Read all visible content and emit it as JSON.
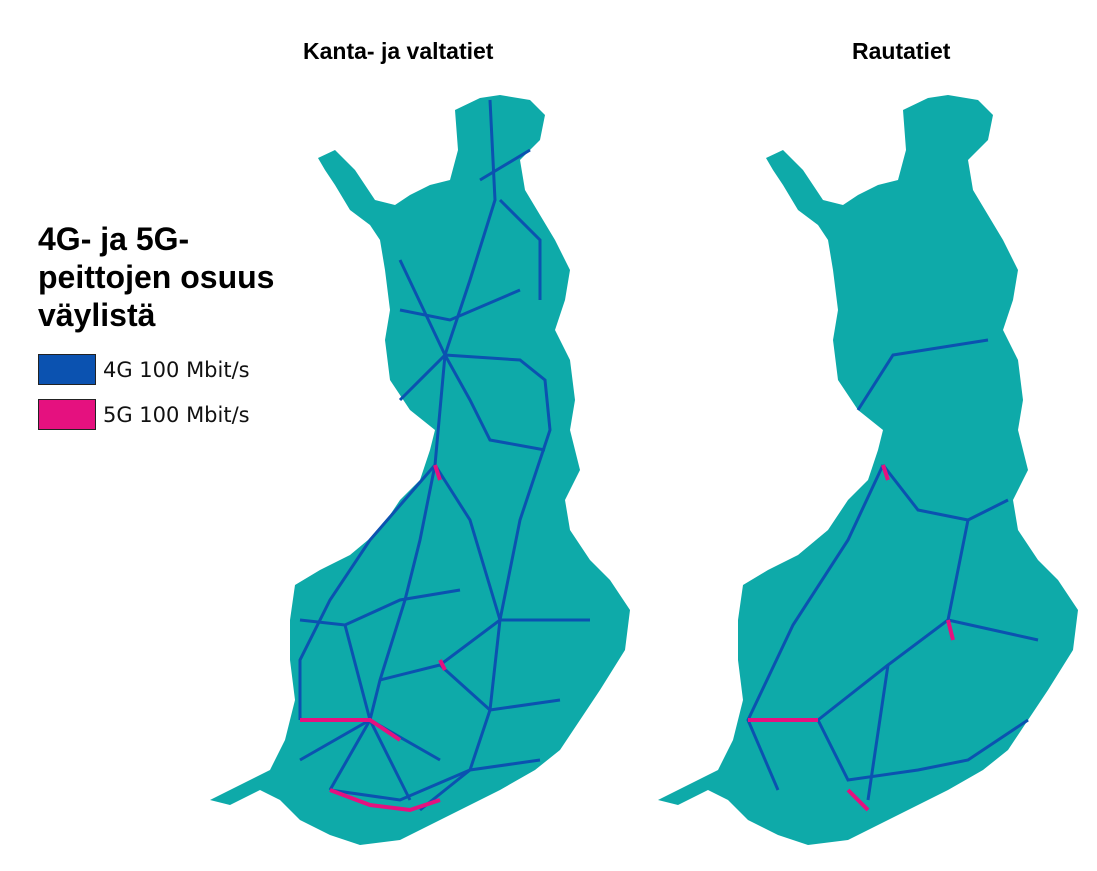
{
  "maps": [
    {
      "title": "Kanta- ja valtatiet"
    },
    {
      "title": "Rautatiet"
    }
  ],
  "legend": {
    "title": [
      "4G- ja 5G-",
      "peittojen osuus",
      "väylistä"
    ],
    "items": [
      {
        "label": "4G 100 Mbit/s",
        "color": "#0b52b0"
      },
      {
        "label": "5G 100 Mbit/s",
        "color": "#e5117f"
      }
    ]
  }
}
